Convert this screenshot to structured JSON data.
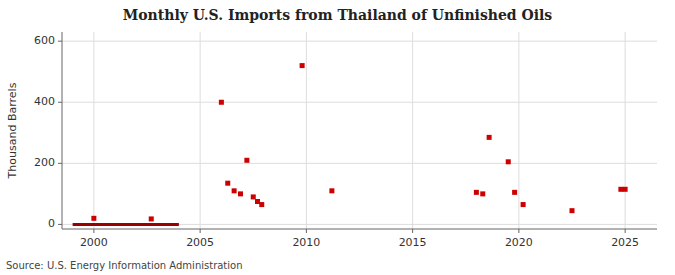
{
  "chart_data": {
    "type": "scatter",
    "title": "Monthly U.S. Imports from Thailand of Unfinished Oils",
    "y_label": "Thousand Barrels",
    "source": "Source: U.S. Energy Information Administration",
    "xlim": [
      1998.5,
      2026.5
    ],
    "ylim": [
      -15,
      630
    ],
    "xticks": [
      2000,
      2005,
      2010,
      2015,
      2020,
      2025
    ],
    "yticks": [
      0,
      200,
      400,
      600
    ],
    "grid": true,
    "series": [
      {
        "type": "scatter",
        "marker": "square",
        "color": "#cc0000",
        "x": [
          2000.0,
          2002.7,
          2006.0,
          2006.3,
          2006.6,
          2006.9,
          2007.2,
          2007.5,
          2007.7,
          2007.9,
          2009.8,
          2011.2,
          2018.0,
          2018.3,
          2018.6,
          2019.5,
          2019.8,
          2020.2,
          2022.5,
          2024.8,
          2025.0
        ],
        "values": [
          20,
          18,
          400,
          135,
          110,
          100,
          210,
          90,
          75,
          65,
          520,
          110,
          105,
          100,
          285,
          205,
          105,
          65,
          45,
          115,
          115
        ]
      },
      {
        "type": "line",
        "line_style": "solid",
        "color": "#990000",
        "x": [
          1999.0,
          2004.0
        ],
        "values": [
          0,
          0
        ]
      }
    ]
  }
}
